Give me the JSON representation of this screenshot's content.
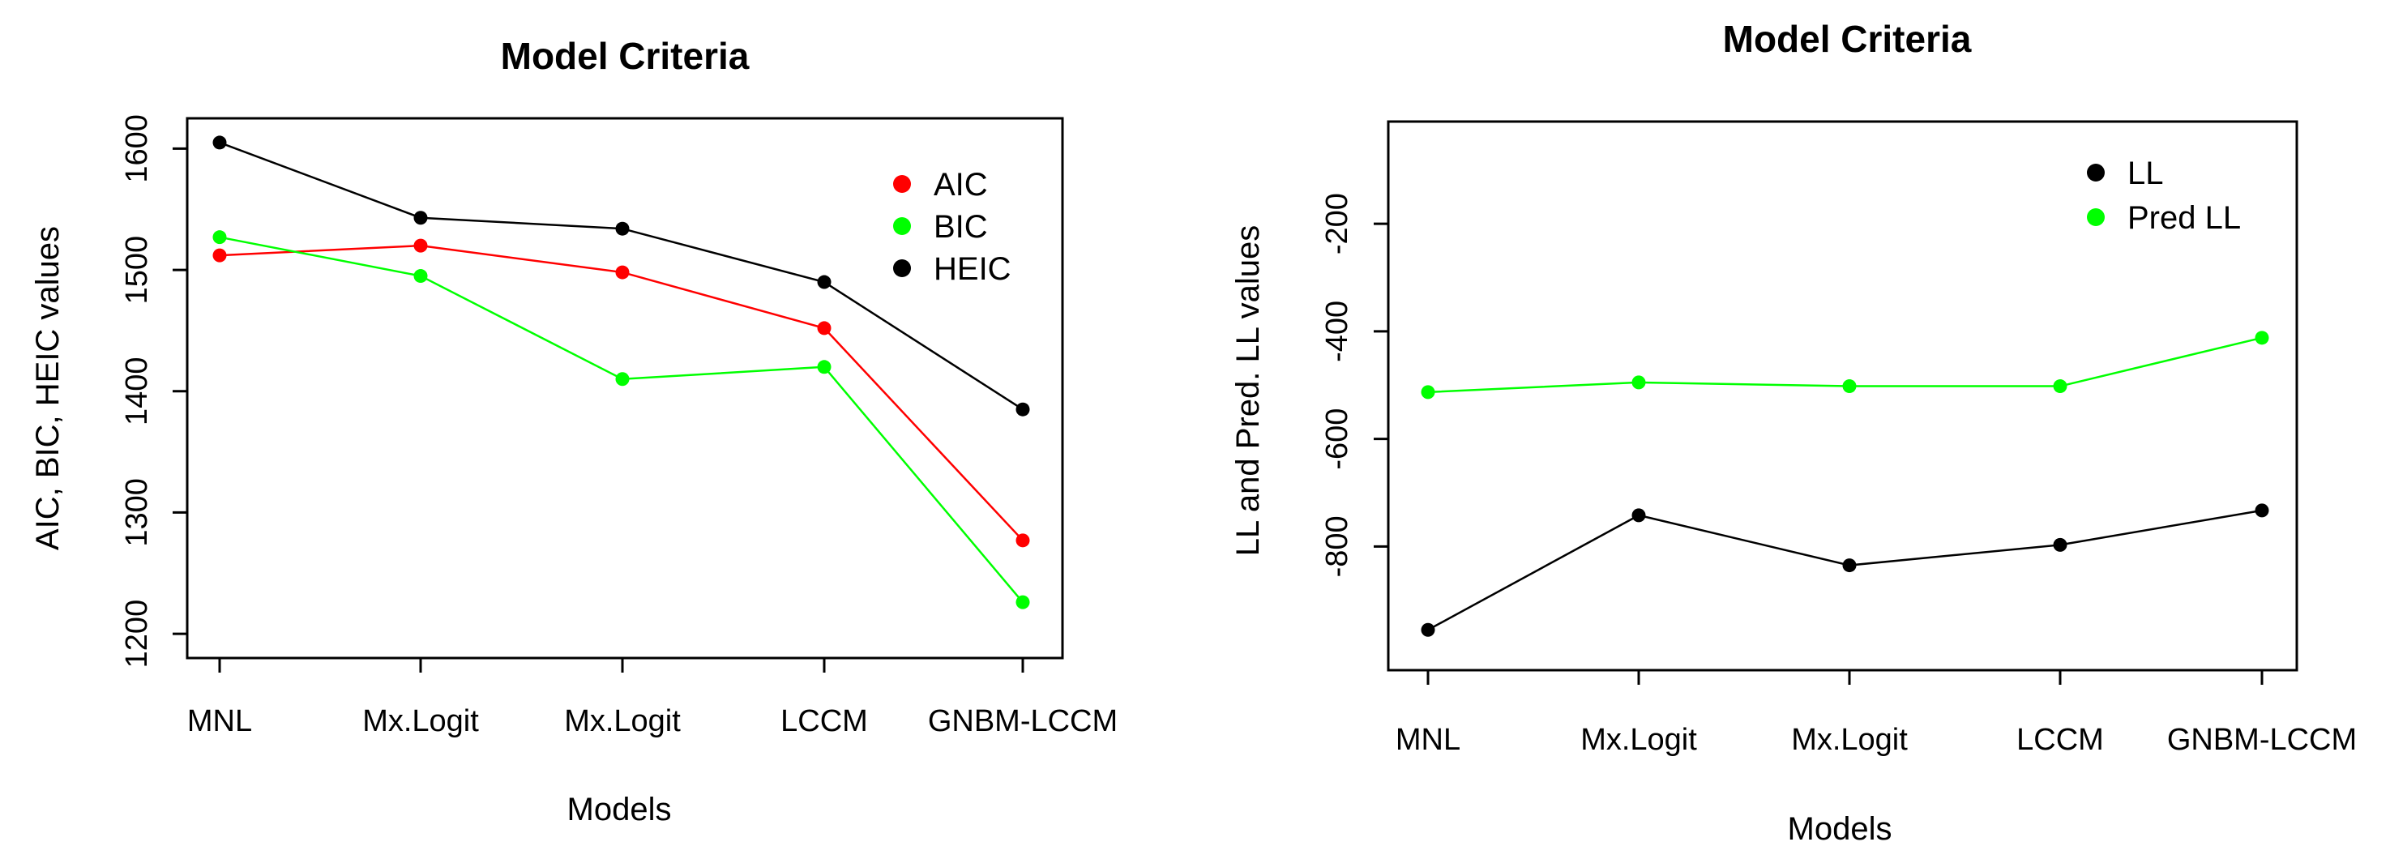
{
  "chart_data": [
    {
      "type": "line",
      "title": "Model Criteria",
      "xlabel": "Models",
      "ylabel": "AIC, BIC, HEIC values",
      "categories": [
        "MNL",
        "Mx.Logit",
        "Mx.Logit",
        "LCCM",
        "GNBM-LCCM"
      ],
      "ylim": [
        1180,
        1625
      ],
      "yticks": [
        1200,
        1300,
        1400,
        1500,
        1600
      ],
      "ytick_labels": [
        "1200",
        "1300",
        "1400",
        "1500",
        "1600"
      ],
      "legend_position": "top-right",
      "series": [
        {
          "name": "AIC",
          "color": "#ff0000",
          "values": [
            1512,
            1520,
            1498,
            1452,
            1277
          ]
        },
        {
          "name": "BIC",
          "color": "#00ff00",
          "values": [
            1527,
            1495,
            1410,
            1420,
            1226
          ]
        },
        {
          "name": "HEIC",
          "color": "#000000",
          "values": [
            1605,
            1543,
            1534,
            1490,
            1385
          ]
        }
      ]
    },
    {
      "type": "line",
      "title": "Model Criteria",
      "xlabel": "Models",
      "ylabel": "LL and Pred. LL values",
      "categories": [
        "MNL",
        "Mx.Logit",
        "Mx.Logit",
        "LCCM",
        "GNBM-LCCM"
      ],
      "ylim": [
        -1030,
        -10
      ],
      "yticks": [
        -200,
        -400,
        -600,
        -800
      ],
      "ytick_labels": [
        "-200",
        "-400",
        "-600",
        "-800"
      ],
      "legend_position": "top-right",
      "series": [
        {
          "name": "LL",
          "color": "#000000",
          "values": [
            -955,
            -742,
            -835,
            -797,
            -733
          ]
        },
        {
          "name": "Pred LL",
          "color": "#00ff00",
          "values": [
            -513,
            -495,
            -502,
            -502,
            -412
          ]
        }
      ]
    }
  ]
}
